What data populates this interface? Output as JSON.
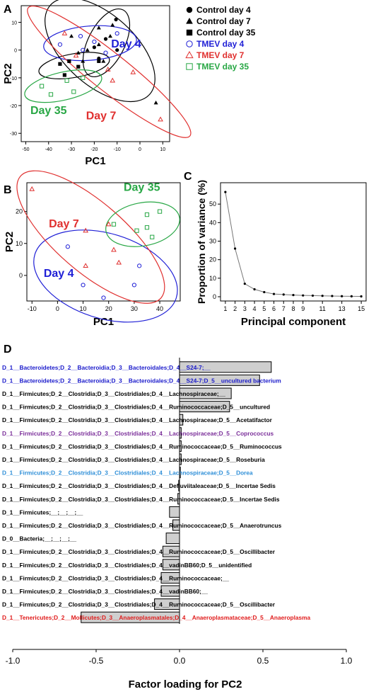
{
  "panels": {
    "A": "A",
    "B": "B",
    "C": "C",
    "D": "D"
  },
  "colors": {
    "control": "#000000",
    "day4": "#1f1fd6",
    "day7": "#e0302f",
    "day35": "#28a745",
    "blue_label": "#1a1acb",
    "purple_label": "#7b2f9a",
    "lightblue_label": "#2f8fd8",
    "red_label": "#e01b1b",
    "bar_fill": "#cfcfcf"
  },
  "chart_data": [
    {
      "id": "A",
      "type": "scatter",
      "xlabel": "PC1",
      "ylabel": "PC2",
      "xlim": [
        -52,
        13
      ],
      "ylim": [
        -33,
        16
      ],
      "xticks": [
        -50,
        -40,
        -30,
        -20,
        -10,
        0,
        10
      ],
      "yticks": [
        -30,
        -20,
        -10,
        0,
        10
      ],
      "legend_placement": "right",
      "legend": [
        {
          "label": "Control day 4",
          "marker": "circle-filled",
          "color": "control"
        },
        {
          "label": "Control day 7",
          "marker": "triangle-filled",
          "color": "control"
        },
        {
          "label": "Control day 35",
          "marker": "square-filled",
          "color": "control"
        },
        {
          "label": "TMEV day 4",
          "marker": "circle-open",
          "color": "day4"
        },
        {
          "label": "TMEV day 7",
          "marker": "triangle-open",
          "color": "day7"
        },
        {
          "label": "TMEV day 35",
          "marker": "square-open",
          "color": "day35"
        }
      ],
      "annotations": [
        {
          "text": "Day 4",
          "x": -6,
          "y": 1,
          "color": "day4"
        },
        {
          "text": "Day 7",
          "x": -17,
          "y": -25,
          "color": "day7"
        },
        {
          "text": "Day 35",
          "x": -40,
          "y": -23,
          "color": "day35"
        }
      ],
      "series": [
        {
          "name": "Control day 4",
          "marker": "circle-filled",
          "color": "control",
          "points": [
            [
              -10.5,
              11
            ],
            [
              -20,
              1
            ],
            [
              -15,
              4
            ],
            [
              -10,
              0
            ],
            [
              -18,
              -3
            ]
          ]
        },
        {
          "name": "Control day 7",
          "marker": "triangle-filled",
          "color": "control",
          "points": [
            [
              -30,
              5
            ],
            [
              -27,
              -1
            ],
            [
              -23,
              0
            ],
            [
              -18,
              8
            ],
            [
              -13,
              5
            ],
            [
              -18,
              2
            ],
            [
              -25,
              -4
            ],
            [
              -12,
              9
            ],
            [
              -16,
              -4
            ],
            [
              7,
              -19
            ]
          ]
        },
        {
          "name": "Control day 35",
          "marker": "square-filled",
          "color": "control",
          "points": [
            [
              -35,
              -5
            ],
            [
              -31,
              -4
            ],
            [
              -33,
              -9
            ],
            [
              -27,
              -6
            ],
            [
              -18,
              -4
            ]
          ]
        },
        {
          "name": "TMEV day 4",
          "marker": "circle-open",
          "color": "day4",
          "points": [
            [
              -25,
              0
            ],
            [
              -20,
              3
            ],
            [
              -15,
              -1
            ],
            [
              -10,
              6
            ],
            [
              -26,
              5
            ],
            [
              -35,
              2
            ]
          ]
        },
        {
          "name": "TMEV day 7",
          "marker": "triangle-open",
          "color": "day7",
          "points": [
            [
              -33,
              6
            ],
            [
              -28,
              -2
            ],
            [
              -14,
              -7
            ],
            [
              -3,
              -8
            ],
            [
              -12,
              -11
            ],
            [
              9,
              -25
            ]
          ]
        },
        {
          "name": "TMEV day 35",
          "marker": "square-open",
          "color": "day35",
          "points": [
            [
              -43,
              -13
            ],
            [
              -39,
              -16
            ],
            [
              -32,
              -11
            ],
            [
              -29,
              -15
            ],
            [
              -25,
              -10
            ]
          ]
        }
      ]
    },
    {
      "id": "B",
      "type": "scatter",
      "xlabel": "PC1",
      "ylabel": "PC2",
      "xlim": [
        -12,
        48
      ],
      "ylim": [
        -8,
        29
      ],
      "xticks": [
        -10,
        0,
        10,
        20,
        30,
        40
      ],
      "yticks": [
        0,
        10,
        20
      ],
      "annotations": [
        {
          "text": "Day 35",
          "x": 33,
          "y": 26.5,
          "color": "day35"
        },
        {
          "text": "Day 7",
          "x": 2.5,
          "y": 15,
          "color": "day7"
        },
        {
          "text": "Day 4",
          "x": 0.5,
          "y": -0.5,
          "color": "day4"
        }
      ],
      "series": [
        {
          "name": "TMEV day 4",
          "marker": "circle-open",
          "color": "day4",
          "points": [
            [
              4,
              9
            ],
            [
              10,
              -3
            ],
            [
              18,
              -7
            ],
            [
              30,
              -3
            ],
            [
              32,
              3
            ]
          ]
        },
        {
          "name": "TMEV day 7",
          "marker": "triangle-open",
          "color": "day7",
          "points": [
            [
              -10,
              27
            ],
            [
              11,
              14
            ],
            [
              20,
              16
            ],
            [
              22,
              8
            ],
            [
              11,
              3
            ],
            [
              24,
              4
            ]
          ]
        },
        {
          "name": "TMEV day 35",
          "marker": "square-open",
          "color": "day35",
          "points": [
            [
              22,
              16
            ],
            [
              35,
              19
            ],
            [
              40,
              20
            ],
            [
              35,
              15
            ],
            [
              31,
              14
            ],
            [
              37,
              12
            ]
          ]
        }
      ]
    },
    {
      "id": "C",
      "type": "line",
      "xlabel": "Principal component",
      "ylabel": "Proportion of variance (%)",
      "x": [
        1,
        2,
        3,
        4,
        5,
        6,
        7,
        8,
        9,
        10,
        11,
        12,
        13,
        14,
        15
      ],
      "values": [
        56.5,
        26,
        7,
        4,
        2.5,
        1.5,
        1.2,
        0.9,
        0.7,
        0.6,
        0.5,
        0.4,
        0.3,
        0.25,
        0.2
      ],
      "xticks": [
        1,
        2,
        3,
        4,
        5,
        6,
        7,
        8,
        9,
        11,
        13,
        15
      ],
      "ylim": [
        0,
        60
      ],
      "yticks": [
        0,
        10,
        20,
        30,
        40,
        50
      ]
    },
    {
      "id": "D",
      "type": "bar",
      "orientation": "horizontal",
      "xlabel": "Factor loading for PC2",
      "xlim": [
        -1.0,
        1.0
      ],
      "xticks": [
        "-1.0",
        "-0.5",
        "0.0",
        "0.5",
        "1.0"
      ],
      "categories": [
        {
          "label": "D_1__Bacteroidetes;D_2__Bacteroidia;D_3__Bacteroidales;D_4__S24-7;__",
          "color": "blue_label",
          "value": 0.55
        },
        {
          "label": "D_1__Bacteroidetes;D_2__Bacteroidia;D_3__Bacteroidales;D_4__S24-7;D_5__uncultured bacterium",
          "color": "blue_label",
          "value": 0.48
        },
        {
          "label": "D_1__Firmicutes;D_2__Clostridia;D_3__Clostridiales;D_4__Lachnospiraceae;__",
          "color": "black",
          "value": 0.31
        },
        {
          "label": "D_1__Firmicutes;D_2__Clostridia;D_3__Clostridiales;D_4__Ruminococcaceae;D_5__uncultured",
          "color": "black",
          "value": 0.3
        },
        {
          "label": "D_1__Firmicutes;D_2__Clostridia;D_3__Clostridiales;D_4__Lachnospiraceae;D_5__Acetatifactor",
          "color": "black",
          "value": 0.02
        },
        {
          "label": "D_1__Firmicutes;D_2__Clostridia;D_3__Clostridiales;D_4__Lachnospiraceae;D_5__Coprococcus",
          "color": "purple_label",
          "value": 0.01
        },
        {
          "label": "D_1__Firmicutes;D_2__Clostridia;D_3__Clostridiales;D_4__Ruminococcaceae;D_5__Ruminococcus",
          "color": "black",
          "value": 0.01
        },
        {
          "label": "D_1__Firmicutes;D_2__Clostridia;D_3__Clostridiales;D_4__Lachnospiraceae;D_5__Roseburia",
          "color": "black",
          "value": 0.01
        },
        {
          "label": "D_1__Firmicutes;D_2__Clostridia;D_3__Clostridiales;D_4__Lachnospiraceae;D_5__Dorea",
          "color": "lightblue_label",
          "value": 0.005
        },
        {
          "label": "D_1__Firmicutes;D_2__Clostridia;D_3__Clostridiales;D_4__Defluviitaleaceae;D_5__Incertae Sedis",
          "color": "black",
          "value": -0.005
        },
        {
          "label": "D_1__Firmicutes;D_2__Clostridia;D_3__Clostridiales;D_4__Ruminococcaceae;D_5__Incertae Sedis",
          "color": "black",
          "value": -0.01
        },
        {
          "label": "D_1__Firmicutes;__;__;__;__",
          "color": "black",
          "value": -0.06
        },
        {
          "label": "D_1__Firmicutes;D_2__Clostridia;D_3__Clostridiales;D_4__Ruminococcaceae;D_5__Anaerotruncus",
          "color": "black",
          "value": -0.04
        },
        {
          "label": "D_0__Bacteria;__;__;__;__",
          "color": "black",
          "value": -0.08
        },
        {
          "label": "D_1__Firmicutes;D_2__Clostridia;D_3__Clostridiales;D_4__Ruminococcaceae;D_5__Oscillibacter",
          "color": "black",
          "value": -0.1
        },
        {
          "label": "D_1__Firmicutes;D_2__Clostridia;D_3__Clostridiales;D_4__vadinBB60;D_5__unidentified",
          "color": "black",
          "value": -0.1
        },
        {
          "label": "D_1__Firmicutes;D_2__Clostridia;D_3__Clostridiales;D_4__Ruminococcaceae;__",
          "color": "black",
          "value": -0.11
        },
        {
          "label": "D_1__Firmicutes;D_2__Clostridia;D_3__Clostridiales;D_4__vadinBB60;__",
          "color": "black",
          "value": -0.11
        },
        {
          "label": "D_1__Firmicutes;D_2__Clostridia;D_3__Clostridiales;D_4__Ruminococcaceae;D_5__Oscillibacter",
          "color": "black",
          "value": -0.15
        },
        {
          "label": "D_1__Tenericutes;D_2__Mollicutes;D_3__Anaeroplasmatales;D_4__Anaeroplasmataceae;D_5__Anaeroplasma",
          "color": "red_label",
          "value": -0.59
        }
      ]
    }
  ]
}
